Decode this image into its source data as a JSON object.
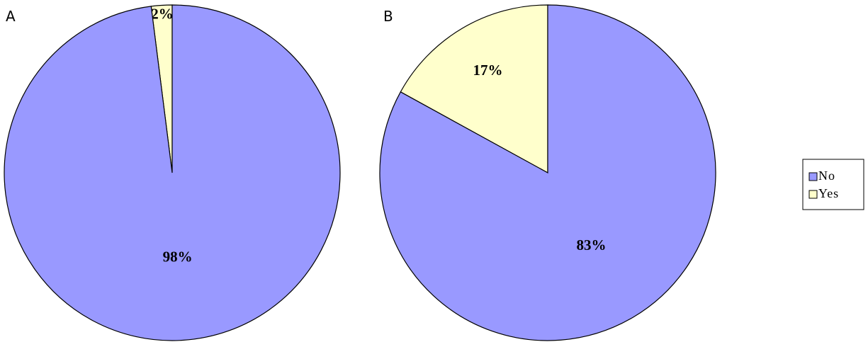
{
  "chart_data": [
    {
      "type": "pie",
      "panel_label": "A",
      "slices": [
        {
          "category": "No",
          "value": 98,
          "label": "98%"
        },
        {
          "category": "Yes",
          "value": 2,
          "label": "2%"
        }
      ]
    },
    {
      "type": "pie",
      "panel_label": "B",
      "slices": [
        {
          "category": "No",
          "value": 83,
          "label": "83%"
        },
        {
          "category": "Yes",
          "value": 17,
          "label": "17%"
        }
      ]
    }
  ],
  "legend": {
    "placement": "right",
    "items": [
      {
        "label": "No",
        "color": "#9999ff"
      },
      {
        "label": "Yes",
        "color": "#ffffcc"
      }
    ]
  },
  "colors": {
    "No": "#9999ff",
    "Yes": "#ffffcc",
    "edge": "#000000"
  }
}
